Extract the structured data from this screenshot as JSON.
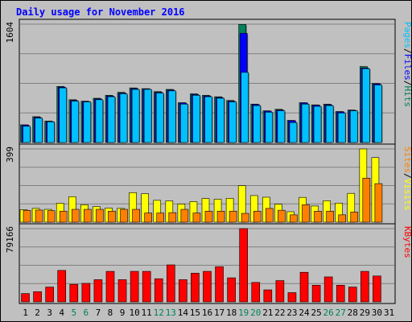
{
  "chart_data": {
    "type": "bar",
    "title": "Daily usage for November 2016",
    "colors": {
      "background": "#c0c0c0",
      "plot": "#c0c0c0",
      "grid": "#808080",
      "hits": "#00805c",
      "files": "#0000ff",
      "pages": "#00c0ff",
      "visits": "#ffff00",
      "sites": "#ff8000",
      "kbytes": "#ff0000",
      "title": "#0000ff",
      "weekend": "#00805c",
      "weekday": "#000000"
    },
    "x": [
      "1",
      "2",
      "3",
      "4",
      "5",
      "6",
      "7",
      "8",
      "9",
      "10",
      "11",
      "12",
      "13",
      "14",
      "15",
      "16",
      "17",
      "18",
      "19",
      "20",
      "21",
      "22",
      "23",
      "24",
      "25",
      "26",
      "27",
      "28",
      "29",
      "30",
      "31"
    ],
    "weekend_days": [
      "5",
      "6",
      "12",
      "13",
      "19",
      "20",
      "26",
      "27"
    ],
    "panels": [
      {
        "id": "hits-files-pages",
        "ytick": "1604",
        "ymax": 1604,
        "legend": [
          {
            "text": "Pages",
            "color": "#00c0ff"
          },
          {
            "text": "/",
            "color": "#000000"
          },
          {
            "text": "Files",
            "color": "#0000ff"
          },
          {
            "text": "/",
            "color": "#000000"
          },
          {
            "text": "Hits",
            "color": "#00805c"
          }
        ],
        "series": [
          {
            "key": "hits",
            "color": "#00805c",
            "values": [
              240,
              350,
              290,
              760,
              580,
              560,
              600,
              640,
              680,
              740,
              730,
              690,
              720,
              540,
              660,
              640,
              620,
              570,
              1600,
              520,
              430,
              450,
              300,
              540,
              510,
              520,
              420,
              440,
              1030,
              800,
              null
            ]
          },
          {
            "key": "files",
            "color": "#0000ff",
            "values": [
              235,
              340,
              285,
              750,
              570,
              555,
              590,
              630,
              670,
              730,
              725,
              680,
              710,
              535,
              650,
              630,
              610,
              560,
              1480,
              515,
              425,
              440,
              295,
              535,
              505,
              510,
              415,
              435,
              1010,
              795,
              null
            ]
          },
          {
            "key": "pages",
            "color": "#00c0ff",
            "values": [
              220,
              330,
              280,
              740,
              560,
              550,
              580,
              620,
              660,
              720,
              720,
              670,
              700,
              520,
              640,
              620,
              600,
              550,
              950,
              500,
              410,
              430,
              270,
              520,
              490,
              500,
              400,
              430,
              1000,
              780,
              null
            ]
          }
        ]
      },
      {
        "id": "visits-sites",
        "ytick": "399",
        "ymax": 399,
        "legend": [
          {
            "text": "Sites",
            "color": "#ff8000"
          },
          {
            "text": "/",
            "color": "#000000"
          },
          {
            "text": "Visits",
            "color": "#ffff00"
          }
        ],
        "series": [
          {
            "key": "visits",
            "color": "#ffff00",
            "values": [
              68,
              75,
              70,
              103,
              139,
              95,
              85,
              77,
              75,
              161,
              155,
              119,
              116,
              99,
              112,
              129,
              125,
              130,
              199,
              145,
              136,
              98,
              57,
              135,
              88,
              117,
              104,
              157,
              399,
              352,
              null
            ]
          },
          {
            "key": "sites",
            "color": "#ff8000",
            "values": [
              64,
              66,
              63,
              60,
              70,
              70,
              70,
              60,
              70,
              70,
              50,
              50,
              52,
              70,
              50,
              60,
              60,
              60,
              48,
              60,
              75,
              65,
              40,
              95,
              60,
              60,
              40,
              55,
              240,
              210,
              null
            ]
          }
        ]
      },
      {
        "id": "kbytes",
        "ytick": "79166",
        "ymax": 79166,
        "legend": [
          {
            "text": "KBytes",
            "color": "#ff0000"
          }
        ],
        "series": [
          {
            "key": "kbytes",
            "color": "#ff0000",
            "values": [
              9000,
              11000,
              16000,
              34000,
              19000,
              20000,
              24000,
              33000,
              24000,
              33000,
              33000,
              25000,
              40000,
              24000,
              31000,
              33000,
              38000,
              26000,
              79166,
              21000,
              13000,
              23000,
              10000,
              32000,
              18000,
              27000,
              18000,
              16000,
              33000,
              28000,
              null
            ]
          }
        ]
      }
    ]
  }
}
